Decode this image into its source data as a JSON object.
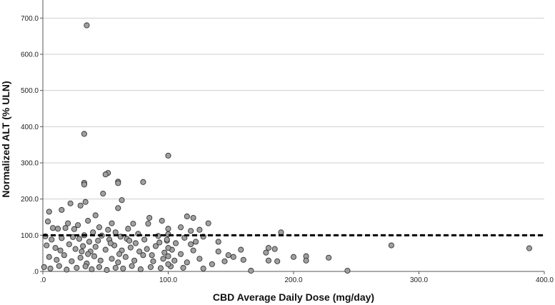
{
  "chart_data": {
    "type": "scatter",
    "title": "",
    "xlabel": "CBD Average Daily Dose (mg/day)",
    "ylabel": "Normalized ALT (% ULN)",
    "xlim": [
      0,
      400
    ],
    "ylim": [
      0,
      750
    ],
    "x_ticks": [
      0,
      100,
      200,
      300,
      400
    ],
    "x_tick_labels": [
      ".0",
      "100.0",
      "200.0",
      "300.0",
      "400.0"
    ],
    "y_ticks": [
      0,
      100,
      200,
      300,
      400,
      500,
      600,
      700
    ],
    "y_tick_labels": [
      ".0",
      "100.0",
      "200.0",
      "300.0",
      "400.0",
      "500.0",
      "600.0",
      "700.0"
    ],
    "grid": "horizontal",
    "reference_line": {
      "y": 100,
      "style": "dashed"
    },
    "colors": {
      "marker_fill": "#a0a0a0",
      "marker_stroke": "#333333",
      "grid": "#cfcfcf",
      "reference_line": "#000000"
    },
    "series": [
      {
        "points": [
          [
            35,
            680
          ],
          [
            33,
            380
          ],
          [
            100,
            320
          ],
          [
            52,
            272
          ],
          [
            50,
            268
          ],
          [
            33,
            245
          ],
          [
            33,
            240
          ],
          [
            60,
            248
          ],
          [
            60,
            244
          ],
          [
            80,
            247
          ],
          [
            48,
            215
          ],
          [
            63,
            197
          ],
          [
            22,
            188
          ],
          [
            30,
            182
          ],
          [
            34,
            192
          ],
          [
            60,
            175
          ],
          [
            15,
            170
          ],
          [
            5,
            165
          ],
          [
            42,
            155
          ],
          [
            115,
            152
          ],
          [
            120,
            148
          ],
          [
            85,
            148
          ],
          [
            95,
            140
          ],
          [
            132,
            133
          ],
          [
            4,
            138
          ],
          [
            36,
            140
          ],
          [
            55,
            133
          ],
          [
            72,
            132
          ],
          [
            8,
            120
          ],
          [
            12,
            118
          ],
          [
            18,
            120
          ],
          [
            25,
            117
          ],
          [
            28,
            128
          ],
          [
            20,
            133
          ],
          [
            45,
            122
          ],
          [
            52,
            115
          ],
          [
            68,
            118
          ],
          [
            84,
            132
          ],
          [
            110,
            122
          ],
          [
            118,
            112
          ],
          [
            125,
            115
          ],
          [
            100,
            118
          ],
          [
            40,
            108
          ],
          [
            58,
            108
          ],
          [
            2,
            97
          ],
          [
            7,
            88
          ],
          [
            15,
            92
          ],
          [
            24,
            95
          ],
          [
            29,
            90
          ],
          [
            33,
            100
          ],
          [
            37,
            82
          ],
          [
            47,
            99
          ],
          [
            53,
            88
          ],
          [
            62,
            96
          ],
          [
            67,
            90
          ],
          [
            76,
            104
          ],
          [
            92,
            98
          ],
          [
            113,
            93
          ],
          [
            128,
            96
          ],
          [
            190,
            108
          ],
          [
            3,
            72
          ],
          [
            10,
            65
          ],
          [
            14,
            58
          ],
          [
            21,
            75
          ],
          [
            26,
            62
          ],
          [
            32,
            70
          ],
          [
            38,
            55
          ],
          [
            42,
            68
          ],
          [
            50,
            60
          ],
          [
            57,
            72
          ],
          [
            63,
            58
          ],
          [
            70,
            66
          ],
          [
            77,
            55
          ],
          [
            83,
            62
          ],
          [
            90,
            70
          ],
          [
            97,
            52
          ],
          [
            103,
            60
          ],
          [
            110,
            48
          ],
          [
            120,
            58
          ],
          [
            140,
            55
          ],
          [
            148,
            45
          ],
          [
            158,
            60
          ],
          [
            178,
            52
          ],
          [
            185,
            62
          ],
          [
            200,
            40
          ],
          [
            210,
            42
          ],
          [
            228,
            38
          ],
          [
            278,
            72
          ],
          [
            388,
            64
          ],
          [
            5,
            40
          ],
          [
            11,
            32
          ],
          [
            17,
            45
          ],
          [
            23,
            28
          ],
          [
            30,
            38
          ],
          [
            35,
            22
          ],
          [
            41,
            42
          ],
          [
            46,
            30
          ],
          [
            55,
            35
          ],
          [
            60,
            25
          ],
          [
            66,
            40
          ],
          [
            73,
            30
          ],
          [
            80,
            45
          ],
          [
            88,
            28
          ],
          [
            96,
            35
          ],
          [
            105,
            30
          ],
          [
            115,
            25
          ],
          [
            125,
            35
          ],
          [
            135,
            20
          ],
          [
            145,
            28
          ],
          [
            152,
            40
          ],
          [
            160,
            32
          ],
          [
            180,
            30
          ],
          [
            187,
            28
          ],
          [
            210,
            30
          ],
          [
            1,
            12
          ],
          [
            6,
            8
          ],
          [
            13,
            15
          ],
          [
            19,
            5
          ],
          [
            27,
            10
          ],
          [
            34,
            14
          ],
          [
            39,
            6
          ],
          [
            45,
            12
          ],
          [
            51,
            4
          ],
          [
            58,
            10
          ],
          [
            64,
            8
          ],
          [
            71,
            15
          ],
          [
            78,
            6
          ],
          [
            86,
            12
          ],
          [
            94,
            9
          ],
          [
            102,
            14
          ],
          [
            112,
            10
          ],
          [
            128,
            8
          ],
          [
            166,
            2
          ],
          [
            243,
            0
          ],
          [
            31,
            55
          ],
          [
            36,
            48
          ],
          [
            44,
            85
          ],
          [
            54,
            78
          ],
          [
            61,
            48
          ],
          [
            69,
            85
          ],
          [
            74,
            78
          ],
          [
            81,
            88
          ],
          [
            87,
            45
          ],
          [
            93,
            80
          ],
          [
            99,
            85
          ],
          [
            106,
            78
          ],
          [
            118,
            75
          ],
          [
            122,
            82
          ],
          [
            99,
            88
          ],
          [
            100,
            103
          ],
          [
            100,
            65
          ],
          [
            100,
            42
          ],
          [
            100,
            20
          ],
          [
            140,
            82
          ],
          [
            180,
            65
          ]
        ]
      }
    ]
  }
}
